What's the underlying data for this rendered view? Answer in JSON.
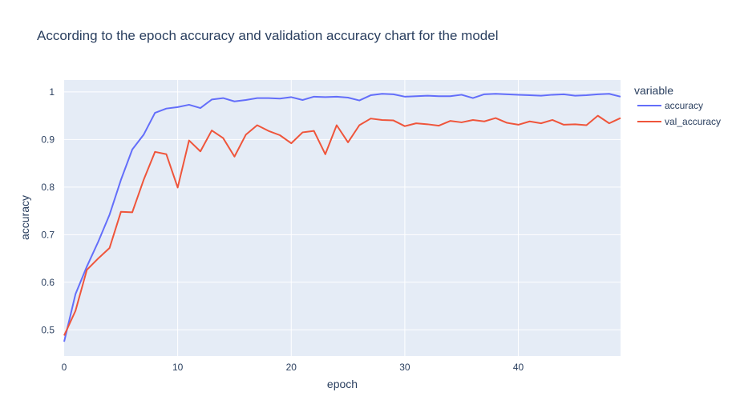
{
  "chart_data": {
    "type": "line",
    "title": "According to the epoch accuracy and validation accuracy chart for the model",
    "xlabel": "epoch",
    "ylabel": "accuracy",
    "xlim": [
      0,
      49
    ],
    "ylim": [
      0.445,
      1.025
    ],
    "x_ticks": [
      0,
      10,
      20,
      30,
      40
    ],
    "y_ticks": [
      0.5,
      0.6,
      0.7,
      0.8,
      0.9,
      1
    ],
    "grid": true,
    "legend": {
      "title": "variable",
      "placement": "right"
    },
    "x": [
      0,
      1,
      2,
      3,
      4,
      5,
      6,
      7,
      8,
      9,
      10,
      11,
      12,
      13,
      14,
      15,
      16,
      17,
      18,
      19,
      20,
      21,
      22,
      23,
      24,
      25,
      26,
      27,
      28,
      29,
      30,
      31,
      32,
      33,
      34,
      35,
      36,
      37,
      38,
      39,
      40,
      41,
      42,
      43,
      44,
      45,
      46,
      47,
      48,
      49
    ],
    "series": [
      {
        "name": "accuracy",
        "color": "#636efa",
        "values": [
          0.475,
          0.575,
          0.633,
          0.685,
          0.742,
          0.815,
          0.879,
          0.91,
          0.956,
          0.965,
          0.968,
          0.973,
          0.966,
          0.984,
          0.987,
          0.98,
          0.983,
          0.987,
          0.987,
          0.986,
          0.989,
          0.983,
          0.99,
          0.989,
          0.99,
          0.988,
          0.982,
          0.993,
          0.996,
          0.995,
          0.99,
          0.991,
          0.992,
          0.991,
          0.991,
          0.994,
          0.987,
          0.995,
          0.996,
          0.995,
          0.994,
          0.993,
          0.992,
          0.994,
          0.995,
          0.992,
          0.993,
          0.995,
          0.996,
          0.99
        ]
      },
      {
        "name": "val_accuracy",
        "color": "#ef553b",
        "values": [
          0.488,
          0.54,
          0.626,
          0.65,
          0.672,
          0.748,
          0.747,
          0.815,
          0.874,
          0.869,
          0.799,
          0.898,
          0.875,
          0.919,
          0.903,
          0.864,
          0.91,
          0.93,
          0.918,
          0.909,
          0.892,
          0.915,
          0.918,
          0.869,
          0.93,
          0.894,
          0.93,
          0.944,
          0.941,
          0.94,
          0.928,
          0.934,
          0.932,
          0.929,
          0.939,
          0.936,
          0.941,
          0.938,
          0.945,
          0.935,
          0.931,
          0.938,
          0.934,
          0.941,
          0.931,
          0.932,
          0.93,
          0.95,
          0.934,
          0.945
        ]
      }
    ]
  }
}
